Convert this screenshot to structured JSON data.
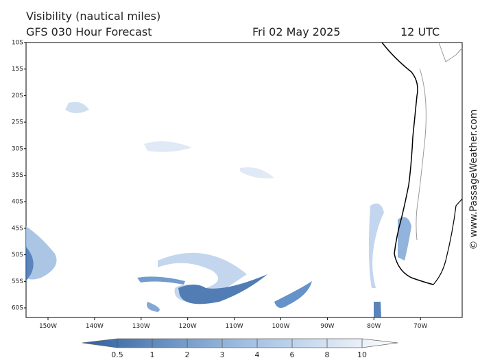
{
  "header": {
    "title": "Visibility (nautical miles)",
    "forecast": "GFS 030 Hour Forecast",
    "date": "Fri 02 May 2025",
    "time": "12 UTC"
  },
  "map": {
    "lat_labels": [
      "10S",
      "15S",
      "20S",
      "25S",
      "30S",
      "35S",
      "40S",
      "45S",
      "50S",
      "55S",
      "60S"
    ],
    "lon_labels": [
      "150W",
      "140W",
      "130W",
      "120W",
      "110W",
      "100W",
      "90W",
      "80W",
      "70W"
    ]
  },
  "legend": {
    "labels": [
      "0.5",
      "1",
      "2",
      "3",
      "4",
      "6",
      "8",
      "10"
    ]
  },
  "watermark": "© www.PassageWeather.com"
}
